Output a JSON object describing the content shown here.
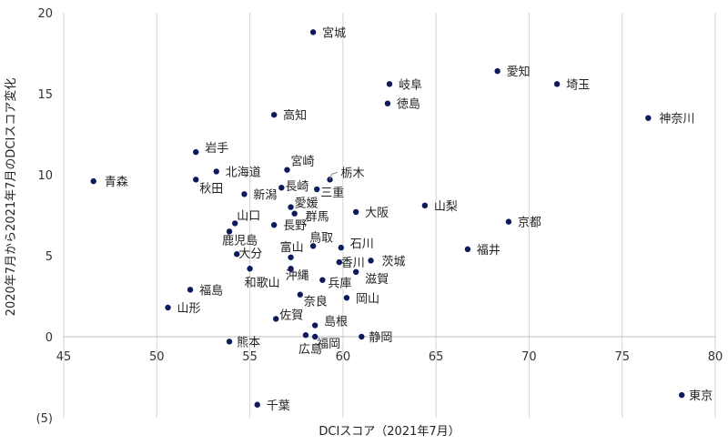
{
  "chart_data": {
    "type": "scatter",
    "title": "",
    "xlabel": "DCIスコア（2021年7月）",
    "ylabel": "2020年7月から2021年7月のDCIスコア変化",
    "xlim": [
      45,
      80
    ],
    "ylim": [
      -5,
      20
    ],
    "x_ticks": [
      45,
      50,
      55,
      60,
      65,
      70,
      75,
      80
    ],
    "y_ticks": [
      -5,
      0,
      5,
      10,
      15,
      20
    ],
    "y_tick_labels": [
      "(5)",
      "0",
      "5",
      "10",
      "15",
      "20"
    ],
    "y_neg_tick_color": "#cc0000",
    "grid": {
      "vertical": true,
      "horizontal": false
    },
    "legend": "none",
    "marker_color": "#0d1a5c",
    "points": [
      {
        "label": "宮城",
        "x": 58.4,
        "y": 18.8
      },
      {
        "label": "愛知",
        "x": 68.3,
        "y": 16.4
      },
      {
        "label": "岐阜",
        "x": 62.5,
        "y": 15.6
      },
      {
        "label": "埼玉",
        "x": 71.5,
        "y": 15.6
      },
      {
        "label": "徳島",
        "x": 62.4,
        "y": 14.4
      },
      {
        "label": "高知",
        "x": 56.3,
        "y": 13.7
      },
      {
        "label": "神奈川",
        "x": 76.4,
        "y": 13.5
      },
      {
        "label": "岩手",
        "x": 52.1,
        "y": 11.4
      },
      {
        "label": "宮崎",
        "x": 57.0,
        "y": 10.3
      },
      {
        "label": "北海道",
        "x": 53.2,
        "y": 10.2
      },
      {
        "label": "栃木",
        "x": 59.3,
        "y": 9.7
      },
      {
        "label": "青森",
        "x": 46.6,
        "y": 9.6
      },
      {
        "label": "秋田",
        "x": 52.1,
        "y": 9.7
      },
      {
        "label": "長崎",
        "x": 56.7,
        "y": 9.2
      },
      {
        "label": "三重",
        "x": 58.6,
        "y": 9.1
      },
      {
        "label": "新潟",
        "x": 54.7,
        "y": 8.8
      },
      {
        "label": "愛媛",
        "x": 57.2,
        "y": 8.0
      },
      {
        "label": "山梨",
        "x": 64.4,
        "y": 8.1
      },
      {
        "label": "大阪",
        "x": 60.7,
        "y": 7.7
      },
      {
        "label": "群馬",
        "x": 57.4,
        "y": 7.6
      },
      {
        "label": "山口",
        "x": 54.2,
        "y": 7.0
      },
      {
        "label": "京都",
        "x": 68.9,
        "y": 7.1
      },
      {
        "label": "長野",
        "x": 56.3,
        "y": 6.9
      },
      {
        "label": "鹿児島",
        "x": 53.9,
        "y": 6.5
      },
      {
        "label": "鳥取",
        "x": 58.4,
        "y": 5.6
      },
      {
        "label": "石川",
        "x": 59.9,
        "y": 5.5
      },
      {
        "label": "福井",
        "x": 66.7,
        "y": 5.4
      },
      {
        "label": "大分",
        "x": 54.3,
        "y": 5.1
      },
      {
        "label": "富山",
        "x": 57.2,
        "y": 4.9
      },
      {
        "label": "香川",
        "x": 59.8,
        "y": 4.6
      },
      {
        "label": "茨城",
        "x": 61.5,
        "y": 4.7
      },
      {
        "label": "沖縄",
        "x": 57.2,
        "y": 4.2
      },
      {
        "label": "滋賀",
        "x": 60.7,
        "y": 4.0
      },
      {
        "label": "和歌山",
        "x": 55.0,
        "y": 4.2
      },
      {
        "label": "兵庫",
        "x": 58.9,
        "y": 3.5
      },
      {
        "label": "福島",
        "x": 51.8,
        "y": 2.9
      },
      {
        "label": "奈良",
        "x": 57.7,
        "y": 2.6
      },
      {
        "label": "岡山",
        "x": 60.2,
        "y": 2.4
      },
      {
        "label": "山形",
        "x": 50.6,
        "y": 1.8
      },
      {
        "label": "佐賀",
        "x": 56.4,
        "y": 1.1
      },
      {
        "label": "島根",
        "x": 58.5,
        "y": 0.7
      },
      {
        "label": "広島",
        "x": 58.0,
        "y": 0.1
      },
      {
        "label": "福岡",
        "x": 58.5,
        "y": 0.0
      },
      {
        "label": "静岡",
        "x": 61.0,
        "y": 0.0
      },
      {
        "label": "熊本",
        "x": 53.9,
        "y": -0.3
      },
      {
        "label": "東京",
        "x": 78.2,
        "y": -3.6
      },
      {
        "label": "千葉",
        "x": 55.4,
        "y": -4.2
      }
    ]
  }
}
